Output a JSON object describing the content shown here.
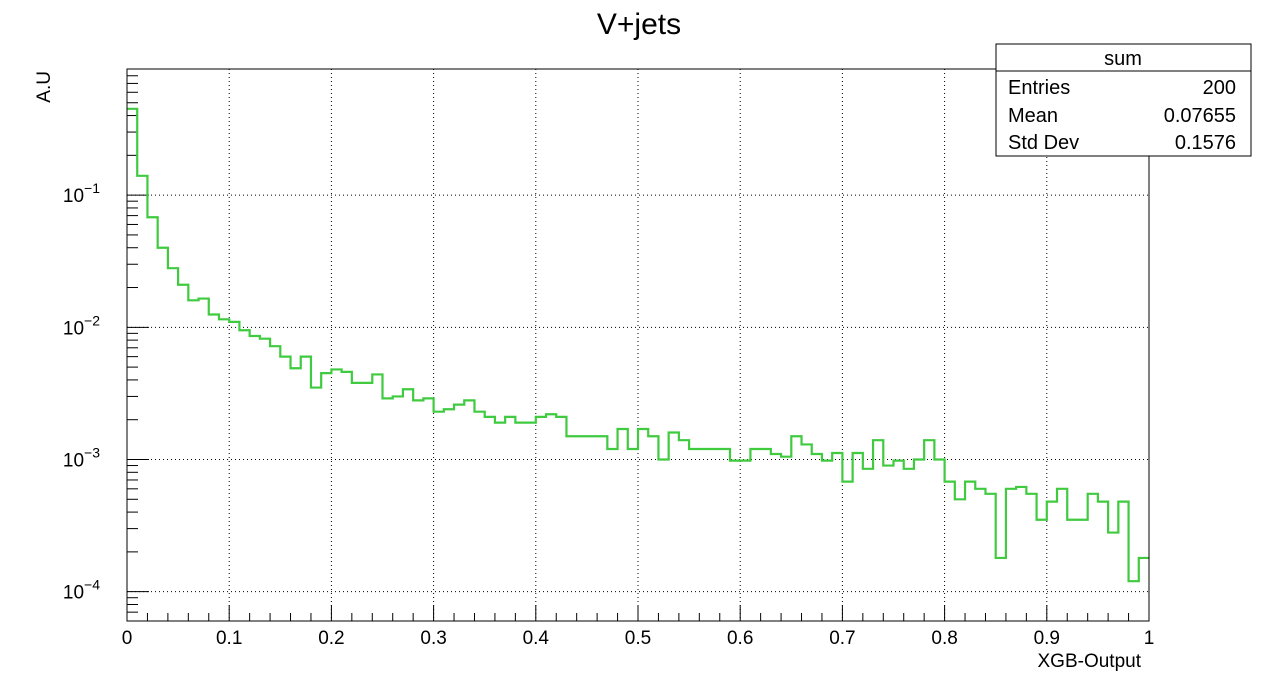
{
  "chart_data": {
    "type": "histogram-step",
    "title": "V+jets",
    "xlabel": "XGB-Output",
    "ylabel": "A.U",
    "xlim": [
      0,
      1
    ],
    "ylim": [
      6e-05,
      0.9
    ],
    "yscale": "log",
    "grid": true,
    "x_ticks": [
      "0",
      "0.1",
      "0.2",
      "0.3",
      "0.4",
      "0.5",
      "0.6",
      "0.7",
      "0.8",
      "0.9",
      "1"
    ],
    "y_ticks": [
      {
        "value": 0.1,
        "base": "10",
        "exp": "−1"
      },
      {
        "value": 0.01,
        "base": "10",
        "exp": "−2"
      },
      {
        "value": 0.001,
        "base": "10",
        "exp": "−3"
      },
      {
        "value": 0.0001,
        "base": "10",
        "exp": "−4"
      }
    ],
    "series": [
      {
        "color": "#3fca3f",
        "bin_width": 0.01,
        "values": [
          0.45,
          0.14,
          0.068,
          0.04,
          0.028,
          0.021,
          0.016,
          0.0165,
          0.0125,
          0.0115,
          0.011,
          0.0095,
          0.0086,
          0.0082,
          0.0072,
          0.006,
          0.0049,
          0.006,
          0.0035,
          0.0045,
          0.0048,
          0.0046,
          0.0038,
          0.0038,
          0.0044,
          0.0029,
          0.003,
          0.0034,
          0.0028,
          0.0029,
          0.0023,
          0.0024,
          0.0026,
          0.0028,
          0.0023,
          0.0021,
          0.0019,
          0.0021,
          0.0019,
          0.0019,
          0.0021,
          0.0022,
          0.0021,
          0.0015,
          0.0015,
          0.0015,
          0.0015,
          0.0012,
          0.0017,
          0.0012,
          0.0017,
          0.0015,
          0.001,
          0.0016,
          0.0014,
          0.0012,
          0.0012,
          0.0012,
          0.0012,
          0.00098,
          0.00098,
          0.0012,
          0.0012,
          0.0011,
          0.00105,
          0.0015,
          0.0013,
          0.0011,
          0.00098,
          0.00112,
          0.00068,
          0.00112,
          0.00085,
          0.0014,
          0.0009,
          0.00098,
          0.00085,
          0.001,
          0.0014,
          0.001,
          0.00068,
          0.0005,
          0.00068,
          0.0006,
          0.00055,
          0.00018,
          0.0006,
          0.00062,
          0.00055,
          0.00035,
          0.00048,
          0.0006,
          0.00035,
          0.00035,
          0.00055,
          0.00048,
          0.00028,
          0.00048,
          0.00012,
          0.00018
        ]
      }
    ],
    "stats": {
      "name": "sum",
      "rows": [
        {
          "label": "Entries",
          "value": "200"
        },
        {
          "label": "Mean",
          "value": "0.07655"
        },
        {
          "label": "Std Dev",
          "value": "0.1576"
        }
      ]
    }
  }
}
